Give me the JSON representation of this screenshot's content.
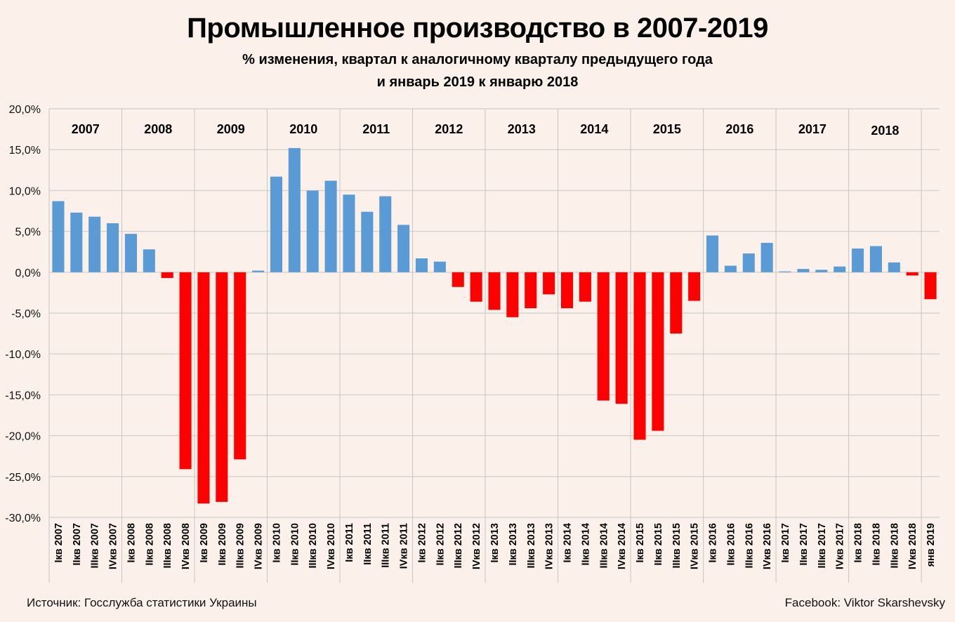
{
  "chart_data": {
    "type": "bar",
    "title": "Промышленное производство в 2007-2019",
    "subtitle_lines": [
      "% изменения, квартал к аналогичному кварталу предыдущего года",
      "и январь 2019 к январю 2018"
    ],
    "xlabel": "",
    "ylabel": "",
    "ylim": [
      -30,
      20
    ],
    "ytick_step": 5,
    "yticks": [
      "20,0%",
      "15,0%",
      "10,0%",
      "5,0%",
      "0,0%",
      "-5,0%",
      "-10,0%",
      "-15,0%",
      "-20,0%",
      "-25,0%",
      "-30,0%"
    ],
    "grid": true,
    "positive_color": "#5b9bd5",
    "negative_color": "#ff0000",
    "year_groups": [
      "2007",
      "2008",
      "2009",
      "2010",
      "2011",
      "2012",
      "2013",
      "2014",
      "2015",
      "2016",
      "2017",
      "2018"
    ],
    "categories": [
      "Iкв 2007",
      "IIкв 2007",
      "IIIкв 2007",
      "IVкв 2007",
      "Iкв 2008",
      "IIкв 2008",
      "IIIкв 2008",
      "IVкв 2008",
      "Iкв 2009",
      "IIкв 2009",
      "IIIкв 2009",
      "IVкв 2009",
      "Iкв 2010",
      "IIкв 2010",
      "IIIкв 2010",
      "IVкв 2010",
      "Iкв 2011",
      "IIкв 2011",
      "IIIкв 2011",
      "IVкв 2011",
      "Iкв 2012",
      "IIкв 2012",
      "IIIкв 2012",
      "IVкв 2012",
      "Iкв 2013",
      "IIкв 2013",
      "IIIкв 2013",
      "IVкв 2013",
      "Iкв 2014",
      "IIкв 2014",
      "IIIкв 2014",
      "IVкв 2014",
      "Iкв 2015",
      "IIкв 2015",
      "IIIкв 2015",
      "IVкв 2015",
      "Iкв 2016",
      "IIкв 2016",
      "IIIкв 2016",
      "IVкв 2016",
      "Iкв 2017",
      "IIкв 2017",
      "IIIкв 2017",
      "IVкв 2017",
      "Iкв 2018",
      "IIкв 2018",
      "IIIкв 2018",
      "IVкв 2018",
      "янв 2019"
    ],
    "values": [
      8.7,
      7.3,
      6.8,
      6.0,
      4.7,
      2.8,
      -0.7,
      -24.1,
      -28.3,
      -28.1,
      -22.9,
      0.2,
      11.7,
      15.2,
      10.0,
      11.2,
      9.5,
      7.4,
      9.3,
      5.8,
      1.7,
      1.3,
      -1.8,
      -3.6,
      -4.6,
      -5.5,
      -4.4,
      -2.7,
      -4.4,
      -3.6,
      -15.7,
      -16.1,
      -20.5,
      -19.4,
      -7.5,
      -3.5,
      4.5,
      0.8,
      2.3,
      3.6,
      0.1,
      0.4,
      0.3,
      0.7,
      2.9,
      3.2,
      1.2,
      -0.4,
      -3.3
    ]
  },
  "footer": {
    "source": "Источник: Госслужба статистики Украины",
    "credit": "Facebook: Viktor Skarshevsky"
  }
}
